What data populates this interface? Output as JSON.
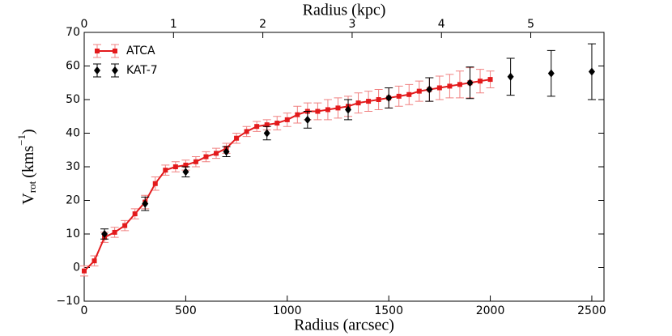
{
  "chart_data": {
    "type": "errorbar",
    "xlabel": "Radius (arcsec)",
    "x2label": "Radius (kpc)",
    "ylabel_parts": [
      "V",
      "rot",
      "(kms",
      "−1",
      ")"
    ],
    "xlim": [
      0,
      2560
    ],
    "xticks": [
      0,
      500,
      1000,
      1500,
      2000,
      2500
    ],
    "x2lim": [
      0,
      5.82
    ],
    "x2ticks": [
      0,
      1,
      2,
      3,
      4,
      5
    ],
    "ylim": [
      -10,
      70
    ],
    "yticks": [
      {
        "value": -10,
        "label": "−10"
      },
      0,
      10,
      20,
      30,
      40,
      50,
      60,
      70
    ],
    "legend": "upper left",
    "series": [
      {
        "name": "ATCA",
        "color": "#e31a1c",
        "marker": "square",
        "line": true,
        "x": [
          0,
          50,
          100,
          150,
          200,
          250,
          300,
          350,
          400,
          450,
          500,
          550,
          600,
          650,
          700,
          750,
          800,
          850,
          900,
          950,
          1000,
          1050,
          1100,
          1150,
          1200,
          1250,
          1300,
          1350,
          1400,
          1450,
          1500,
          1550,
          1600,
          1650,
          1700,
          1750,
          1800,
          1850,
          1900,
          1950,
          2000
        ],
        "values": [
          -1,
          2,
          9,
          10.5,
          12.5,
          16,
          19.5,
          25,
          29,
          30,
          30.5,
          31.5,
          33,
          34,
          35.5,
          38.5,
          40.5,
          42,
          42.5,
          43,
          44,
          45.5,
          46.5,
          46.5,
          47,
          47.5,
          48,
          49,
          49.5,
          50,
          50.5,
          51,
          51.5,
          52.5,
          53,
          53.5,
          54,
          54.5,
          55,
          55.5,
          56
        ],
        "errors": [
          1.5,
          1.5,
          1.5,
          1.5,
          1.5,
          1.5,
          2,
          2,
          1.5,
          1.5,
          1.5,
          1.5,
          1.5,
          1.5,
          1.5,
          1.5,
          1.5,
          1.5,
          1.5,
          2,
          2,
          2.5,
          2.5,
          2.5,
          3,
          3,
          3,
          3,
          3,
          3,
          3,
          3,
          3,
          3,
          3.5,
          3.5,
          3.5,
          4,
          4.5,
          3.5,
          2.5
        ]
      },
      {
        "name": "KAT-7",
        "color": "#000000",
        "marker": "diamond",
        "line": false,
        "x": [
          100,
          300,
          500,
          700,
          900,
          1100,
          1300,
          1500,
          1700,
          1900,
          2100,
          2300,
          2500
        ],
        "values": [
          10,
          19,
          28.5,
          34.5,
          40,
          44,
          47,
          50.5,
          53,
          55,
          56.8,
          57.8,
          58.3
        ],
        "errors": [
          1.5,
          2,
          1.5,
          1.5,
          2,
          2.5,
          3,
          3,
          3.5,
          4.7,
          5.5,
          6.8,
          8.3
        ]
      }
    ]
  }
}
